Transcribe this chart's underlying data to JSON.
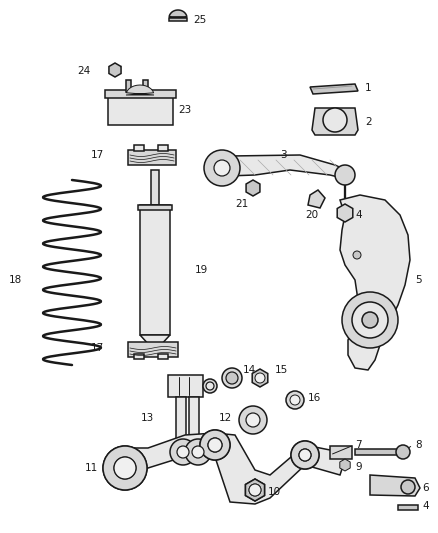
{
  "bg_color": "#ffffff",
  "line_color": "#1a1a1a",
  "figsize": [
    4.38,
    5.33
  ],
  "dpi": 100,
  "lw_main": 1.1,
  "lw_thin": 0.7,
  "gray_fill": "#e8e8e8",
  "gray_dark": "#c8c8c8",
  "gray_mid": "#d8d8d8"
}
